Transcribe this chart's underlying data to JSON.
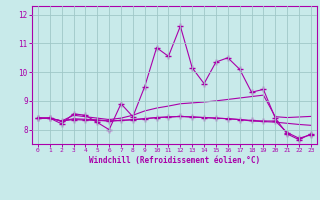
{
  "xlabel": "Windchill (Refroidissement éolien,°C)",
  "bg_color": "#c8eaea",
  "line_color": "#aa00aa",
  "grid_color": "#a0c8c8",
  "xlim": [
    -0.5,
    23.5
  ],
  "ylim": [
    7.5,
    12.3
  ],
  "yticks": [
    8,
    9,
    10,
    11,
    12
  ],
  "xticks": [
    0,
    1,
    2,
    3,
    4,
    5,
    6,
    7,
    8,
    9,
    10,
    11,
    12,
    13,
    14,
    15,
    16,
    17,
    18,
    19,
    20,
    21,
    22,
    23
  ],
  "series": [
    {
      "y": [
        8.4,
        8.4,
        8.2,
        8.55,
        8.5,
        8.25,
        8.0,
        8.9,
        8.45,
        9.5,
        10.85,
        10.55,
        11.6,
        10.15,
        9.6,
        10.35,
        10.5,
        10.1,
        9.3,
        9.4,
        8.4,
        7.85,
        7.65,
        7.85
      ],
      "marker": "+"
    },
    {
      "y": [
        8.4,
        8.4,
        8.3,
        8.5,
        8.45,
        8.4,
        8.35,
        8.4,
        8.5,
        8.65,
        8.75,
        8.82,
        8.9,
        8.93,
        8.96,
        9.0,
        9.05,
        9.1,
        9.15,
        9.2,
        8.45,
        8.42,
        8.44,
        8.46
      ],
      "marker": null
    },
    {
      "y": [
        8.4,
        8.4,
        8.3,
        8.38,
        8.36,
        8.34,
        8.3,
        8.32,
        8.35,
        8.38,
        8.42,
        8.44,
        8.46,
        8.44,
        8.42,
        8.4,
        8.38,
        8.35,
        8.3,
        8.28,
        8.26,
        8.22,
        8.18,
        8.15
      ],
      "marker": null
    },
    {
      "y": [
        8.4,
        8.4,
        8.3,
        8.35,
        8.33,
        8.32,
        8.3,
        8.32,
        8.34,
        8.38,
        8.42,
        8.44,
        8.46,
        8.44,
        8.42,
        8.4,
        8.38,
        8.35,
        8.32,
        8.3,
        8.3,
        7.9,
        7.7,
        7.82
      ],
      "marker": "+"
    }
  ]
}
